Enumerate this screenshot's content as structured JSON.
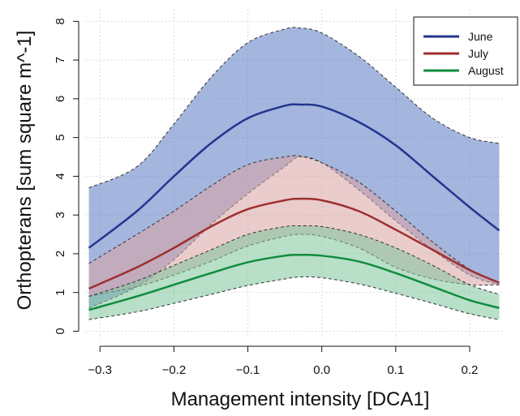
{
  "chart_data": {
    "type": "area",
    "xlabel": "Management intensity [DCA1]",
    "ylabel": "Orthopterans [sum square m^-1]",
    "xlim": [
      -0.32,
      0.245
    ],
    "ylim": [
      -0.2,
      8.3
    ],
    "x_ticks": [
      -0.3,
      -0.2,
      -0.1,
      0.0,
      0.1,
      0.2
    ],
    "x_tick_labels": [
      "−0.3",
      "−0.2",
      "−0.1",
      "0.0",
      "0.1",
      "0.2"
    ],
    "y_ticks": [
      0,
      1,
      2,
      3,
      4,
      5,
      6,
      7,
      8
    ],
    "y_tick_labels": [
      "0",
      "1",
      "2",
      "3",
      "4",
      "5",
      "6",
      "7",
      "8"
    ],
    "grid": true,
    "legend_position": "top-right",
    "series": [
      {
        "name": "June",
        "color": "#23358f",
        "band_color": "#5a78c2",
        "x": [
          -0.315,
          -0.25,
          -0.2,
          -0.15,
          -0.1,
          -0.05,
          -0.03,
          0.0,
          0.05,
          0.1,
          0.15,
          0.2,
          0.24
        ],
        "y": [
          2.15,
          3.1,
          4.0,
          4.85,
          5.5,
          5.82,
          5.85,
          5.8,
          5.4,
          4.8,
          4.0,
          3.2,
          2.6
        ],
        "lower": [
          0.6,
          1.15,
          1.85,
          2.75,
          3.55,
          4.25,
          4.5,
          4.35,
          3.65,
          2.85,
          2.1,
          1.45,
          1.2
        ],
        "upper": [
          3.7,
          4.25,
          5.35,
          6.55,
          7.45,
          7.8,
          7.83,
          7.7,
          7.1,
          6.3,
          5.5,
          5.0,
          4.85
        ]
      },
      {
        "name": "July",
        "color": "#9e2e2e",
        "band_color": "#d9a3a3",
        "x": [
          -0.315,
          -0.25,
          -0.2,
          -0.15,
          -0.1,
          -0.05,
          -0.03,
          0.0,
          0.05,
          0.1,
          0.15,
          0.2,
          0.24
        ],
        "y": [
          1.1,
          1.65,
          2.15,
          2.7,
          3.15,
          3.38,
          3.42,
          3.38,
          3.1,
          2.62,
          2.1,
          1.58,
          1.25
        ],
        "lower": [
          0.9,
          1.15,
          1.45,
          1.8,
          2.2,
          2.45,
          2.5,
          2.45,
          2.15,
          1.65,
          1.35,
          1.2,
          1.2
        ],
        "upper": [
          1.75,
          2.5,
          3.1,
          3.75,
          4.3,
          4.5,
          4.52,
          4.35,
          3.85,
          3.1,
          2.3,
          1.6,
          1.25
        ]
      },
      {
        "name": "August",
        "color": "#0f8c3d",
        "band_color": "#7dc49a",
        "x": [
          -0.315,
          -0.25,
          -0.2,
          -0.15,
          -0.1,
          -0.05,
          -0.03,
          0.0,
          0.05,
          0.1,
          0.15,
          0.2,
          0.24
        ],
        "y": [
          0.55,
          0.9,
          1.2,
          1.5,
          1.78,
          1.95,
          1.97,
          1.95,
          1.8,
          1.5,
          1.15,
          0.8,
          0.6
        ],
        "lower": [
          0.3,
          0.5,
          0.72,
          0.95,
          1.18,
          1.35,
          1.4,
          1.38,
          1.22,
          0.98,
          0.72,
          0.45,
          0.3
        ],
        "upper": [
          0.9,
          1.3,
          1.7,
          2.1,
          2.5,
          2.7,
          2.72,
          2.7,
          2.5,
          2.15,
          1.7,
          1.2,
          0.95
        ]
      }
    ]
  }
}
